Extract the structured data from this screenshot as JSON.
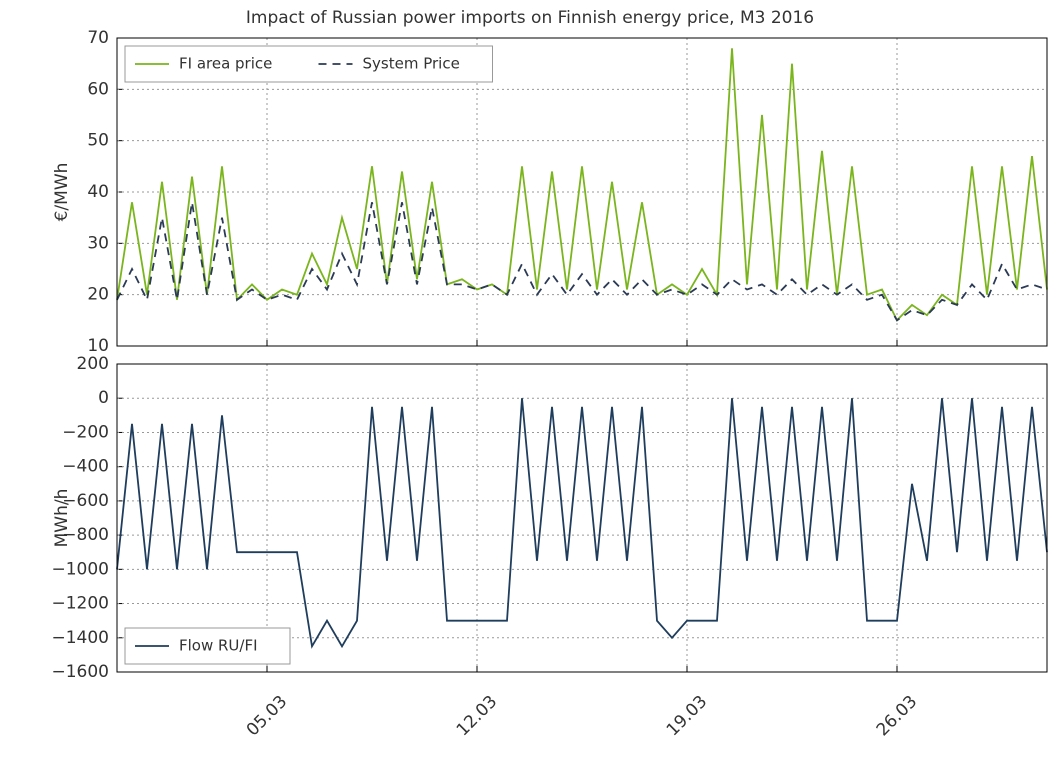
{
  "chart_data": [
    {
      "type": "line",
      "title": "Impact of Russian power imports on  Finnish energy price, M3 2016",
      "y_label": "€/MWh",
      "x": [
        0,
        0.5,
        1,
        1.5,
        2,
        2.5,
        3,
        3.5,
        4,
        4.5,
        5,
        5.5,
        6,
        6.5,
        7,
        7.5,
        8,
        8.5,
        9,
        9.5,
        10,
        10.5,
        11,
        11.5,
        12,
        12.5,
        13,
        13.5,
        14,
        14.5,
        15,
        15.5,
        16,
        16.5,
        17,
        17.5,
        18,
        18.5,
        19,
        19.5,
        20,
        20.5,
        21,
        21.5,
        22,
        22.5,
        23,
        23.5,
        24,
        24.5,
        25,
        25.5,
        26,
        26.5,
        27,
        27.5,
        28,
        28.5,
        29,
        29.5,
        30,
        30.5,
        31
      ],
      "series": [
        {
          "name": "FI area price",
          "color": "#7ab51d",
          "style": "solid",
          "values": [
            19,
            38,
            20,
            42,
            19,
            43,
            20,
            45,
            19,
            22,
            19,
            21,
            20,
            28,
            22,
            35,
            25,
            45,
            22,
            44,
            23,
            42,
            22,
            23,
            21,
            22,
            20,
            45,
            21,
            44,
            21,
            45,
            21,
            42,
            21,
            38,
            20,
            22,
            20,
            25,
            20,
            68,
            22,
            55,
            21,
            65,
            21,
            48,
            20,
            45,
            20,
            21,
            15,
            18,
            16,
            20,
            18,
            45,
            20,
            45,
            21,
            47,
            21
          ]
        },
        {
          "name": "System Price",
          "color": "#2b3a55",
          "style": "dashed",
          "values": [
            19,
            25,
            19,
            35,
            19,
            38,
            20,
            35,
            19,
            21,
            19,
            20,
            19,
            25,
            21,
            28,
            22,
            38,
            22,
            38,
            22,
            37,
            22,
            22,
            21,
            22,
            20,
            26,
            20,
            24,
            20,
            24,
            20,
            23,
            20,
            23,
            20,
            21,
            20,
            22,
            20,
            23,
            21,
            22,
            20,
            23,
            20,
            22,
            20,
            22,
            19,
            20,
            15,
            17,
            16,
            19,
            18,
            22,
            19,
            26,
            21,
            22,
            21
          ]
        }
      ],
      "xlim": [
        0,
        31
      ],
      "ylim": [
        10,
        70
      ],
      "yticks": [
        10,
        20,
        30,
        40,
        50,
        60,
        70
      ],
      "grid": true,
      "legend": "upper left"
    },
    {
      "type": "line",
      "y_label": "MWh/h",
      "x": [
        0,
        0.5,
        1,
        1.5,
        2,
        2.5,
        3,
        3.5,
        4,
        4.5,
        5,
        5.5,
        6,
        6.5,
        7,
        7.5,
        8,
        8.5,
        9,
        9.5,
        10,
        10.5,
        11,
        11.5,
        12,
        12.5,
        13,
        13.5,
        14,
        14.5,
        15,
        15.5,
        16,
        16.5,
        17,
        17.5,
        18,
        18.5,
        19,
        19.5,
        20,
        20.5,
        21,
        21.5,
        22,
        22.5,
        23,
        23.5,
        24,
        24.5,
        25,
        25.5,
        26,
        26.5,
        27,
        27.5,
        28,
        28.5,
        29,
        29.5,
        30,
        30.5,
        31
      ],
      "series": [
        {
          "name": "Flow RU/FI",
          "color": "#1f3d5c",
          "style": "solid",
          "values": [
            -1000,
            -150,
            -1000,
            -150,
            -1000,
            -150,
            -1000,
            -100,
            -900,
            -900,
            -900,
            -900,
            -900,
            -1450,
            -1300,
            -1450,
            -1300,
            -50,
            -950,
            -50,
            -950,
            -50,
            -1300,
            -1300,
            -1300,
            -1300,
            -1300,
            0,
            -950,
            -50,
            -950,
            -50,
            -950,
            -50,
            -950,
            -50,
            -1300,
            -1400,
            -1300,
            -1300,
            -1300,
            0,
            -950,
            -50,
            -950,
            -50,
            -950,
            -50,
            -950,
            0,
            -1300,
            -1300,
            -1300,
            -500,
            -950,
            0,
            -900,
            0,
            -950,
            -50,
            -950,
            -50,
            -900
          ]
        }
      ],
      "xlim": [
        0,
        31
      ],
      "xticks": [
        {
          "value": 5,
          "label": "05.03"
        },
        {
          "value": 12,
          "label": "12.03"
        },
        {
          "value": 19,
          "label": "19.03"
        },
        {
          "value": 26,
          "label": "26.03"
        }
      ],
      "ylim": [
        -1600,
        200
      ],
      "yticks": [
        {
          "value": -1600,
          "label": "−1600"
        },
        {
          "value": -1400,
          "label": "−1400"
        },
        {
          "value": -1200,
          "label": "−1200"
        },
        {
          "value": -1000,
          "label": "−1000"
        },
        {
          "value": -800,
          "label": "−800"
        },
        {
          "value": -600,
          "label": "−600"
        },
        {
          "value": -400,
          "label": "−400"
        },
        {
          "value": -200,
          "label": "−200"
        },
        0,
        200
      ],
      "grid": true,
      "legend": "lower left"
    }
  ]
}
